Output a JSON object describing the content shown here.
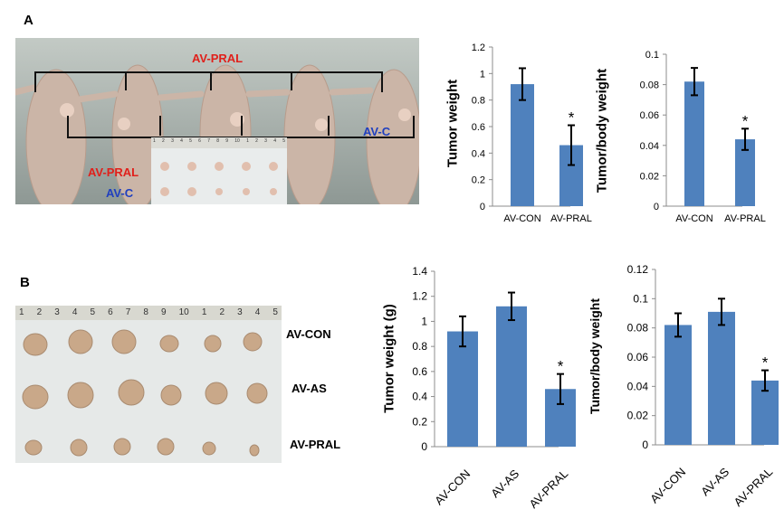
{
  "panels": {
    "a": {
      "letter": "A",
      "photo_labels": {
        "top": "AV-PRAL",
        "right": "AV-C",
        "left_pral": "AV-PRAL",
        "left_c": "AV-C"
      },
      "ruler_marks": [
        "1",
        "2",
        "3",
        "4",
        "5",
        "6",
        "7",
        "8",
        "9",
        "10",
        "1",
        "2",
        "3",
        "4",
        "5"
      ]
    },
    "b": {
      "letter": "B",
      "photo_labels": {
        "row1": "AV-CON",
        "row2": "AV-AS",
        "row3": "AV-PRAL"
      },
      "ruler_marks": [
        "1",
        "2",
        "3",
        "4",
        "5",
        "6",
        "7",
        "8",
        "9",
        "10",
        "1",
        "2",
        "3",
        "4",
        "5"
      ]
    }
  },
  "colors": {
    "bar": "#4f81bd",
    "red_label": "#e0201b",
    "blue_label": "#1f3fbf",
    "skin": "#cdb6a8",
    "board": "#e9ecec"
  },
  "chart_data": [
    {
      "id": "a1",
      "type": "bar",
      "categories": [
        "AV-CON",
        "AV-PRAL"
      ],
      "values": [
        0.92,
        0.46
      ],
      "errors": [
        0.12,
        0.15
      ],
      "significance": [
        "",
        "*"
      ],
      "ylabel": "Tumor weight",
      "ylim": [
        0,
        1.2
      ],
      "yticks": [
        "0",
        "0.2",
        "0.4",
        "0.6",
        "0.8",
        "1",
        "1.2"
      ],
      "tick_values": [
        0,
        0.2,
        0.4,
        0.6,
        0.8,
        1,
        1.2
      ]
    },
    {
      "id": "a2",
      "type": "bar",
      "categories": [
        "AV-CON",
        "AV-PRAL"
      ],
      "values": [
        0.082,
        0.044
      ],
      "errors": [
        0.009,
        0.007
      ],
      "significance": [
        "",
        "*"
      ],
      "ylabel": "Tumor/body weight",
      "ylim": [
        0,
        0.1
      ],
      "yticks": [
        "0",
        "0.02",
        "0.04",
        "0.06",
        "0.08",
        "0.1"
      ],
      "tick_values": [
        0,
        0.02,
        0.04,
        0.06,
        0.08,
        0.1
      ]
    },
    {
      "id": "b1",
      "type": "bar",
      "categories": [
        "AV-CON",
        "AV-AS",
        "AV-PRAL"
      ],
      "values": [
        0.92,
        1.12,
        0.46
      ],
      "errors": [
        0.12,
        0.11,
        0.12
      ],
      "significance": [
        "",
        "",
        "*"
      ],
      "ylabel": "Tumor weight (g)",
      "ylim": [
        0,
        1.4
      ],
      "yticks": [
        "0",
        "0.2",
        "0.4",
        "0.6",
        "0.8",
        "1",
        "1.2",
        "1.4"
      ],
      "tick_values": [
        0,
        0.2,
        0.4,
        0.6,
        0.8,
        1,
        1.2,
        1.4
      ]
    },
    {
      "id": "b2",
      "type": "bar",
      "categories": [
        "AV-CON",
        "AV-AS",
        "AV-PRAL"
      ],
      "values": [
        0.082,
        0.091,
        0.044
      ],
      "errors": [
        0.008,
        0.009,
        0.007
      ],
      "significance": [
        "",
        "",
        "*"
      ],
      "ylabel": "Tumor/body weight",
      "ylim": [
        0,
        0.12
      ],
      "yticks": [
        "0",
        "0.02",
        "0.04",
        "0.06",
        "0.08",
        "0.1",
        "0.12"
      ],
      "tick_values": [
        0,
        0.02,
        0.04,
        0.06,
        0.08,
        0.1,
        0.12
      ]
    }
  ]
}
